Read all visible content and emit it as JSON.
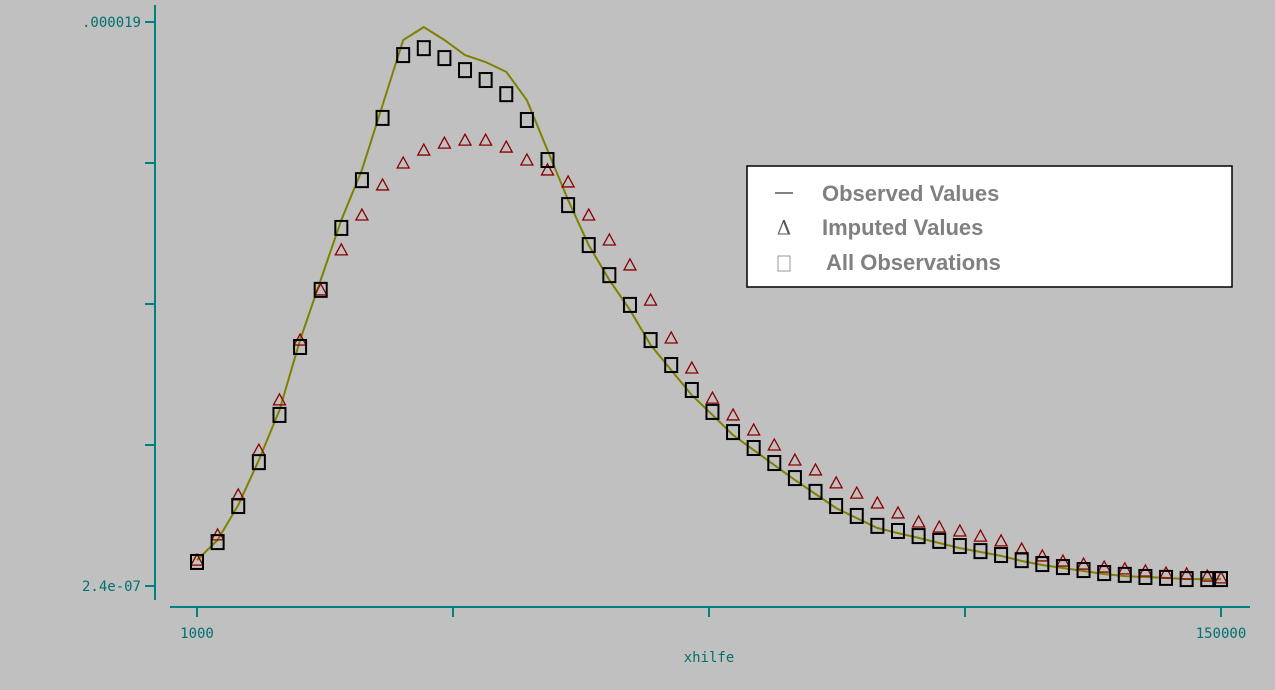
{
  "chart_data": {
    "type": "line",
    "x_label": "xhilfe",
    "x": [
      1000,
      4000,
      7000,
      10000,
      13000,
      16000,
      19000,
      22000,
      25000,
      28000,
      31000,
      34000,
      37000,
      40000,
      43000,
      46000,
      49000,
      52000,
      55000,
      58000,
      61000,
      64000,
      67000,
      70000,
      73000,
      76000,
      79000,
      82000,
      85000,
      88000,
      91000,
      94000,
      97000,
      100000,
      103000,
      106000,
      109000,
      112000,
      115000,
      118000,
      121000,
      124000,
      127000,
      130000,
      133000,
      136000,
      139000,
      142000,
      145000,
      148000,
      150000
    ],
    "series": [
      {
        "name": "Observed Values",
        "color": "#808000",
        "marker": "line",
        "values": [
          1.1e-06,
          1.77e-06,
          2.93e-06,
          4.43e-06,
          6.09e-06,
          8.42e-06,
          1.042e-05,
          1.241e-05,
          1.408e-05,
          1.624e-05,
          1.84e-05,
          1.883e-05,
          1.84e-05,
          1.79e-05,
          1.767e-05,
          1.734e-05,
          1.64e-05,
          1.474e-05,
          1.308e-05,
          1.158e-05,
          1.042e-05,
          9.42e-06,
          8.26e-06,
          7.42e-06,
          6.59e-06,
          5.93e-06,
          5.26e-06,
          4.76e-06,
          4.26e-06,
          3.77e-06,
          3.3e-06,
          2.83e-06,
          2.5e-06,
          2.17e-06,
          2e-06,
          1.84e-06,
          1.67e-06,
          1.5e-06,
          1.37e-06,
          1.24e-06,
          1.07e-06,
          9.4e-07,
          8.4e-07,
          7.4e-07,
          6.4e-07,
          5.7e-07,
          5.4e-07,
          5.1e-07,
          4.7e-07,
          4.7e-07,
          4.7e-07
        ]
      },
      {
        "name": "Imputed Values",
        "color": "#8b0000",
        "marker": "triangle",
        "values": [
          1.1e-06,
          1.94e-06,
          3.27e-06,
          4.76e-06,
          6.43e-06,
          8.42e-06,
          1.009e-05,
          1.142e-05,
          1.258e-05,
          1.358e-05,
          1.431e-05,
          1.474e-05,
          1.497e-05,
          1.507e-05,
          1.507e-05,
          1.484e-05,
          1.441e-05,
          1.408e-05,
          1.368e-05,
          1.258e-05,
          1.175e-05,
          1.092e-05,
          9.75e-06,
          8.49e-06,
          7.49e-06,
          6.49e-06,
          5.93e-06,
          5.43e-06,
          4.93e-06,
          4.43e-06,
          4.1e-06,
          3.67e-06,
          3.33e-06,
          3e-06,
          2.67e-06,
          2.37e-06,
          2.2e-06,
          2.07e-06,
          1.9e-06,
          1.74e-06,
          1.47e-06,
          1.24e-06,
          1.07e-06,
          9.7e-07,
          8.7e-07,
          8.1e-07,
          7.4e-07,
          6.7e-07,
          6.4e-07,
          5.7e-07,
          5.1e-07
        ]
      },
      {
        "name": "All Observations",
        "color": "#000000",
        "marker": "square",
        "values": [
          1.04e-06,
          1.7e-06,
          2.9e-06,
          4.36e-06,
          5.93e-06,
          8.19e-06,
          1.009e-05,
          1.215e-05,
          1.374e-05,
          1.581e-05,
          1.79e-05,
          1.813e-05,
          1.78e-05,
          1.74e-05,
          1.707e-05,
          1.66e-05,
          1.574e-05,
          1.441e-05,
          1.291e-05,
          1.158e-05,
          1.058e-05,
          9.59e-06,
          8.42e-06,
          7.59e-06,
          6.76e-06,
          6.03e-06,
          5.36e-06,
          4.83e-06,
          4.33e-06,
          3.83e-06,
          3.37e-06,
          2.9e-06,
          2.57e-06,
          2.24e-06,
          2.07e-06,
          1.9e-06,
          1.74e-06,
          1.57e-06,
          1.4e-06,
          1.27e-06,
          1.1e-06,
          9.7e-07,
          8.7e-07,
          7.7e-07,
          6.7e-07,
          6.1e-07,
          5.4e-07,
          5.1e-07,
          4.7e-07,
          4.7e-07,
          4.7e-07
        ]
      }
    ],
    "xlim": [
      1000,
      150000
    ],
    "xticks": [
      1000,
      {
        "value": 38250,
        "label": null
      },
      {
        "value": 75500,
        "label": null
      },
      {
        "value": 112750,
        "label": null
      },
      150000
    ],
    "ylim": [
      2.4e-07,
      1.9e-05
    ],
    "yticks": [
      {
        "value": 2.4e-07,
        "label": "2.4e-07"
      },
      {
        "value": 4.93e-06,
        "label": null
      },
      {
        "value": 9.62e-06,
        "label": null
      },
      {
        "value": 1.431e-05,
        "label": null
      },
      {
        "value": 1.9e-05,
        "label": ".000019"
      }
    ],
    "axis_color": "#008080"
  }
}
